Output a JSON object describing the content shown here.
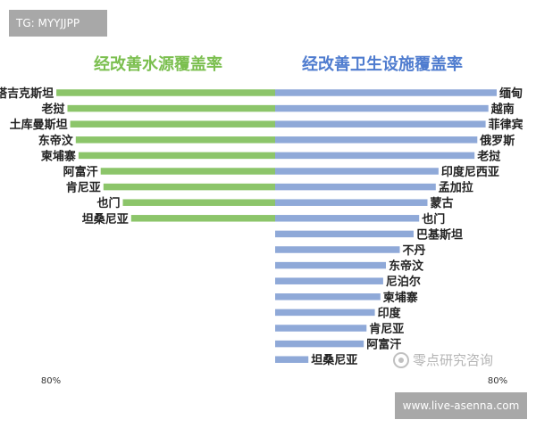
{
  "watermark_tag": "TG: MYYJJPP",
  "watermark_url": "www.live-asenna.com",
  "watermark_logo": "零点研究咨询",
  "chart_data": {
    "type": "bar",
    "axis_max_label": "80%",
    "colors": {
      "left": "#8cc56a",
      "right": "#8fa9d8",
      "left_title": "#7bbf4f",
      "right_title": "#4f7ccf"
    },
    "left": {
      "title": "经改善水源覆盖率",
      "categories": [
        "塔吉克斯坦",
        "老挝",
        "土库曼斯坦",
        "东帝汶",
        "柬埔寨",
        "阿富汗",
        "肯尼亚",
        "也门",
        "坦桑尼亚"
      ],
      "values": [
        79,
        75,
        74,
        72,
        71,
        63,
        62,
        55,
        52
      ]
    },
    "right": {
      "title": "经改善卫生设施覆盖率",
      "categories": [
        "缅甸",
        "越南",
        "菲律宾",
        "俄罗斯",
        "老挝",
        "印度尼西亚",
        "孟加拉",
        "蒙古",
        "也门",
        "巴基斯坦",
        "不丹",
        "东帝汶",
        "尼泊尔",
        "柬埔寨",
        "印度",
        "肯尼亚",
        "阿富汗",
        "坦桑尼亚"
      ],
      "values": [
        80,
        77,
        76,
        73,
        72,
        59,
        58,
        55,
        52,
        50,
        45,
        40,
        39,
        38,
        36,
        33,
        32,
        12
      ]
    }
  }
}
